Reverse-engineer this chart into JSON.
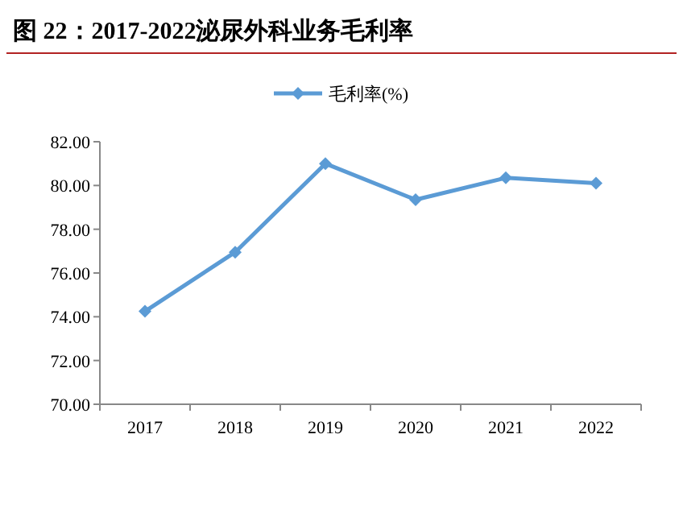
{
  "chart_data": {
    "type": "line",
    "title": "图 22：2017-2022泌尿外科业务毛利率",
    "categories": [
      "2017",
      "2018",
      "2019",
      "2020",
      "2021",
      "2022"
    ],
    "series": [
      {
        "name": "毛利率(%)",
        "color": "#5b9bd5",
        "values": [
          74.25,
          76.95,
          81.0,
          79.35,
          80.35,
          80.1
        ]
      }
    ],
    "ylim": [
      70,
      82
    ],
    "yticks": [
      {
        "value": 70,
        "label": "70.00"
      },
      {
        "value": 72,
        "label": "72.00"
      },
      {
        "value": 74,
        "label": "74.00"
      },
      {
        "value": 76,
        "label": "76.00"
      },
      {
        "value": 78,
        "label": "78.00"
      },
      {
        "value": 80,
        "label": "80.00"
      },
      {
        "value": 82,
        "label": "82.00"
      }
    ],
    "marker": "diamond",
    "legend": "top",
    "grid": false
  }
}
